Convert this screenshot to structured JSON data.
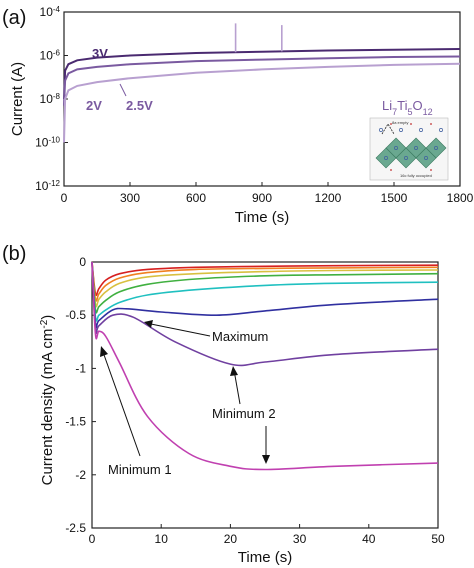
{
  "figure": {
    "panel_a_letter": "(a)",
    "panel_b_letter": "(b)"
  },
  "chart_data": [
    {
      "panel": "(a)",
      "type": "line",
      "scale_y": "log",
      "xlabel": "Time (s)",
      "ylabel": "Current (A)",
      "xlim": [
        0,
        1800
      ],
      "ylim": [
        1e-12,
        0.0001
      ],
      "x_ticks": [
        "0",
        "300",
        "600",
        "900",
        "1200",
        "1500",
        "1800"
      ],
      "y_ticks": [
        {
          "base": "10",
          "exp": "-4"
        },
        {
          "base": "10",
          "exp": "-6"
        },
        {
          "base": "10",
          "exp": "-8"
        },
        {
          "base": "10",
          "exp": "-10"
        },
        {
          "base": "10",
          "exp": "-12"
        }
      ],
      "annotation": {
        "parts": [
          "Li",
          "7",
          "Ti",
          "5",
          "O",
          "12"
        ]
      },
      "inset_structure": {
        "label_top": "8a empty",
        "label_bottom": "16c fully occupied"
      },
      "series": [
        {
          "name": "3V",
          "color": "#4a2a70",
          "x": [
            0,
            5,
            20,
            60,
            150,
            300,
            600,
            900,
            1200,
            1500,
            1800
          ],
          "y": [
            1e-08,
            2e-07,
            4e-07,
            6e-07,
            8e-07,
            1e-06,
            1.3e-06,
            1.5e-06,
            1.7e-06,
            1.85e-06,
            2e-06
          ]
        },
        {
          "name": "2.5V",
          "color": "#7a5aa0",
          "x": [
            0,
            5,
            20,
            60,
            150,
            300,
            600,
            900,
            1200,
            1500,
            1800
          ],
          "y": [
            5e-09,
            7e-08,
            1.5e-07,
            2.3e-07,
            3e-07,
            4e-07,
            5.5e-07,
            6.5e-07,
            7.5e-07,
            8.5e-07,
            9e-07
          ]
        },
        {
          "name": "2V",
          "color": "#b8a0d0",
          "x": [
            0,
            5,
            20,
            60,
            150,
            300,
            600,
            900,
            1200,
            1500,
            1800
          ],
          "y": [
            1e-10,
            1e-08,
            2.5e-08,
            4e-08,
            6e-08,
            9e-08,
            1.6e-07,
            2.3e-07,
            3e-07,
            3.7e-07,
            4.2e-07
          ]
        }
      ],
      "spikes": [
        {
          "series": "3V",
          "x": 780,
          "peak": 3e-05
        },
        {
          "series": "3V",
          "x": 990,
          "peak": 2.5e-05
        }
      ]
    },
    {
      "panel": "(b)",
      "type": "line",
      "xlabel": "Time (s)",
      "ylabel": {
        "main": "Current density (mA cm",
        "exp": "-2",
        "close": ")"
      },
      "xlim": [
        0,
        50
      ],
      "ylim": [
        -2.5,
        0
      ],
      "x_ticks": [
        "0",
        "10",
        "20",
        "30",
        "40",
        "50"
      ],
      "y_ticks": [
        "0",
        "-0.5",
        "-1",
        "-1.5",
        "-2",
        "-2.5"
      ],
      "annotations": [
        "Maximum",
        "Minimum 2",
        "Minimum 1"
      ],
      "series": [
        {
          "color": "#d62020",
          "x": [
            0,
            0.5,
            1,
            2,
            4,
            8,
            15,
            25,
            35,
            50
          ],
          "y": [
            0,
            -0.3,
            -0.25,
            -0.17,
            -0.11,
            -0.07,
            -0.05,
            -0.04,
            -0.035,
            -0.03
          ]
        },
        {
          "color": "#f08020",
          "x": [
            0,
            0.5,
            1,
            2,
            4,
            8,
            15,
            25,
            35,
            50
          ],
          "y": [
            0,
            -0.35,
            -0.3,
            -0.22,
            -0.15,
            -0.1,
            -0.07,
            -0.06,
            -0.055,
            -0.05
          ]
        },
        {
          "color": "#d8c040",
          "x": [
            0,
            0.5,
            1,
            2,
            4,
            8,
            15,
            25,
            35,
            50
          ],
          "y": [
            0,
            -0.4,
            -0.35,
            -0.28,
            -0.2,
            -0.14,
            -0.11,
            -0.09,
            -0.08,
            -0.075
          ]
        },
        {
          "color": "#40b040",
          "x": [
            0,
            0.5,
            1,
            2,
            4,
            8,
            15,
            25,
            35,
            50
          ],
          "y": [
            0,
            -0.45,
            -0.42,
            -0.36,
            -0.28,
            -0.21,
            -0.16,
            -0.13,
            -0.12,
            -0.11
          ]
        },
        {
          "color": "#20c0c0",
          "x": [
            0,
            0.5,
            1,
            2,
            4,
            8,
            15,
            25,
            35,
            50
          ],
          "y": [
            0,
            -0.52,
            -0.5,
            -0.45,
            -0.38,
            -0.31,
            -0.26,
            -0.22,
            -0.2,
            -0.19
          ]
        },
        {
          "color": "#3030a0",
          "x": [
            0,
            0.5,
            1,
            3,
            5,
            10,
            18,
            25,
            35,
            50
          ],
          "y": [
            0,
            -0.58,
            -0.55,
            -0.45,
            -0.44,
            -0.47,
            -0.5,
            -0.46,
            -0.4,
            -0.35
          ]
        },
        {
          "color": "#7040a0",
          "x": [
            0,
            0.5,
            1,
            3,
            6,
            12,
            20,
            25,
            35,
            50
          ],
          "y": [
            0,
            -0.63,
            -0.6,
            -0.5,
            -0.52,
            -0.75,
            -0.96,
            -0.94,
            -0.87,
            -0.82
          ]
        },
        {
          "color": "#c040b0",
          "x": [
            0,
            0.5,
            1,
            2,
            4,
            8,
            14,
            20,
            25,
            35,
            50
          ],
          "y": [
            0,
            -0.68,
            -0.65,
            -0.7,
            -0.95,
            -1.45,
            -1.8,
            -1.92,
            -1.95,
            -1.92,
            -1.89
          ]
        }
      ]
    }
  ]
}
